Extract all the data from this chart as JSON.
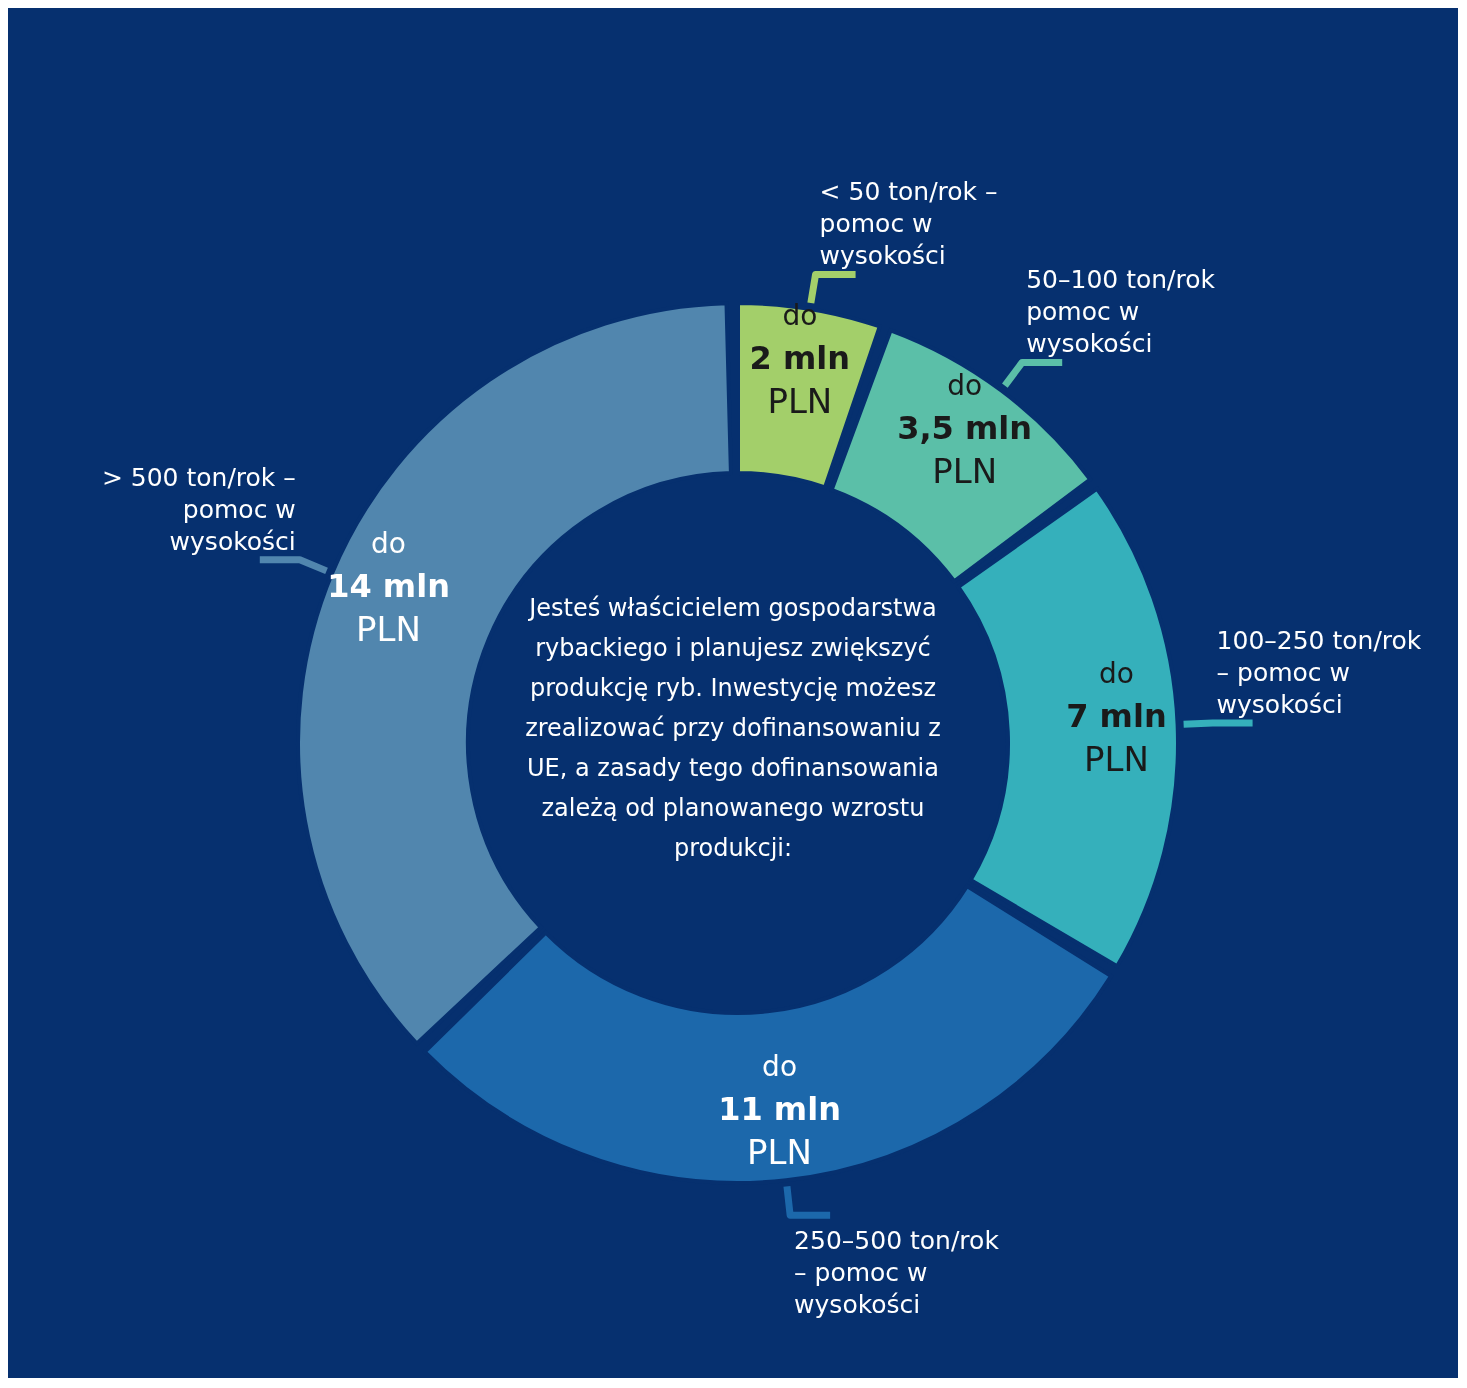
{
  "chart_data": {
    "type": "donut",
    "categories": [
      "< 50 ton/rok – pomoc w wysokości",
      "50–100 ton/rok pomoc w wysokości",
      "100–250 ton/rok – pomoc w wysokości",
      "250–500 ton/rok – pomoc w wysokości",
      "> 500 ton/rok – pomoc w wysokości"
    ],
    "values": [
      2,
      3.5,
      7,
      11,
      14
    ],
    "colors": [
      "#a3cf6a",
      "#5bbfa8",
      "#35b0bb",
      "#1c68ab",
      "#5186ae"
    ],
    "value_labels": [
      "do 2 mln PLN",
      "do 3,5 mln PLN",
      "do 7 mln PLN",
      "do 11 mln PLN",
      "do 14 mln PLN"
    ],
    "annotations": [
      "Jesteś właścicielem gospodarstwa rybackiego i planujesz zwiększyć produkcję ryb. Inwestycję możesz zrealizować przy dofinansowaniu z UE, a zasady tego dofinansowania zależą od planowanego wzrostu produkcji:"
    ],
    "legend": false
  }
}
